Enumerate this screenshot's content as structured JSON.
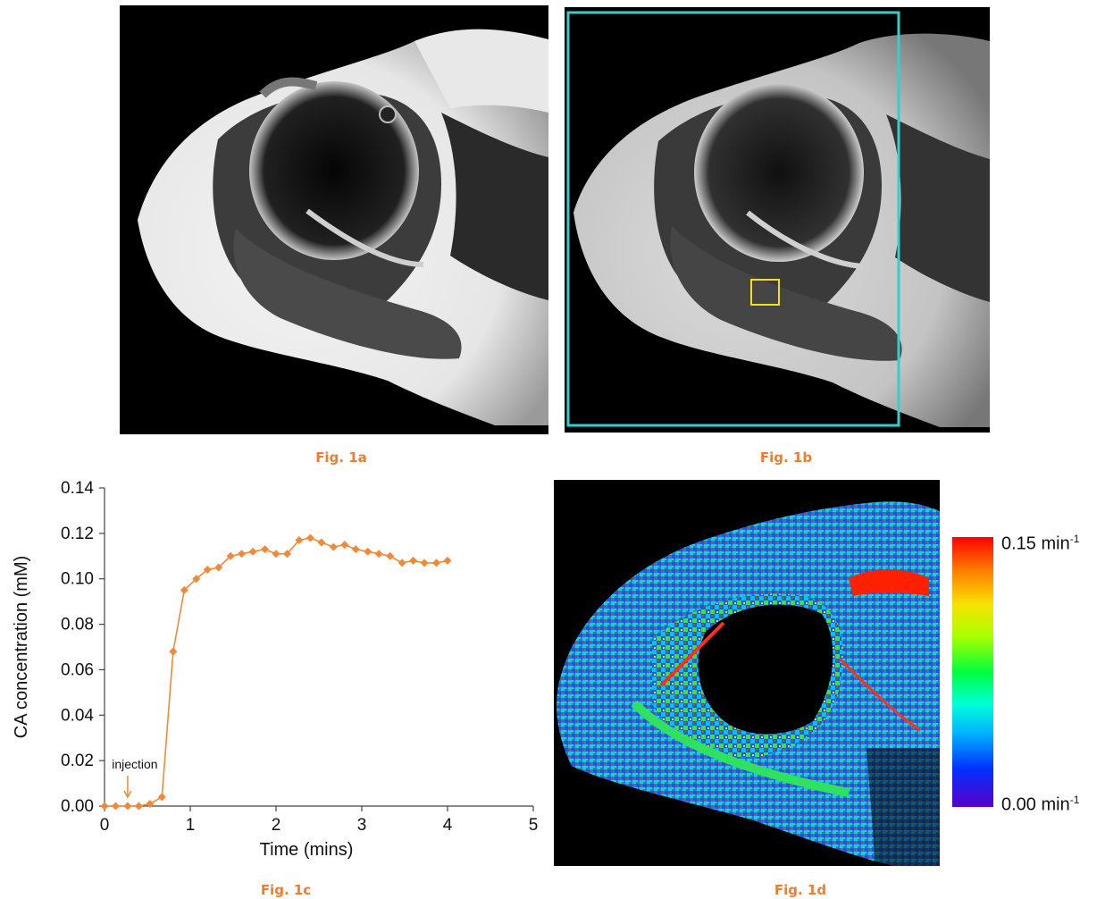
{
  "figures": {
    "fig_1a": {
      "caption": "Fig. 1a"
    },
    "fig_1b": {
      "caption": "Fig. 1b"
    },
    "fig_1c": {
      "caption": "Fig. 1c"
    },
    "fig_1d": {
      "caption": "Fig. 1d"
    }
  },
  "colorbar": {
    "max_value": "0.15 min",
    "max_exp": "-1",
    "min_value": "0.00 min",
    "min_exp": "-1"
  },
  "colors": {
    "caption": "#f07c32",
    "series": "#f08a3a",
    "roi_large": "#2fd0d0",
    "roi_small": "#f0e020"
  },
  "chart_data": {
    "type": "scatter",
    "xlabel": "Time  (mins)",
    "ylabel": "CA concentration (mM)",
    "xlim": [
      0,
      5
    ],
    "ylim": [
      0,
      0.14
    ],
    "x_ticks": [
      "0",
      "1",
      "2",
      "3",
      "4",
      "5"
    ],
    "y_ticks": [
      "0.00",
      "0.02",
      "0.04",
      "0.06",
      "0.08",
      "0.10",
      "0.12",
      "0.14"
    ],
    "annotation": {
      "text": "injection",
      "x": 0.27,
      "y": 0.0
    },
    "series": [
      {
        "x": [
          0.0,
          0.13,
          0.27,
          0.4,
          0.53,
          0.67,
          0.8,
          0.93,
          1.07,
          1.2,
          1.33,
          1.47,
          1.6,
          1.73,
          1.87,
          2.0,
          2.13,
          2.27,
          2.4,
          2.53,
          2.67,
          2.8,
          2.93,
          3.07,
          3.2,
          3.33,
          3.47,
          3.6,
          3.73,
          3.87,
          4.0
        ],
        "y": [
          0.0,
          0.0,
          0.0,
          0.0,
          0.001,
          0.004,
          0.068,
          0.095,
          0.1,
          0.104,
          0.105,
          0.11,
          0.111,
          0.112,
          0.113,
          0.111,
          0.111,
          0.117,
          0.118,
          0.116,
          0.114,
          0.115,
          0.113,
          0.112,
          0.111,
          0.11,
          0.107,
          0.108,
          0.107,
          0.107,
          0.108
        ]
      }
    ]
  }
}
